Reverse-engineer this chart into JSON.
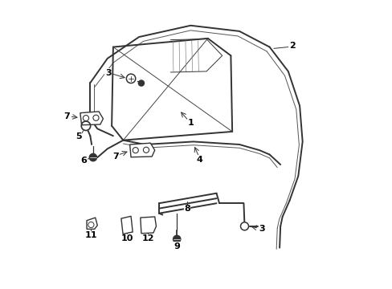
{
  "background_color": "#ffffff",
  "line_color": "#333333",
  "label_color": "#000000",
  "figsize": [
    4.89,
    3.6
  ],
  "dpi": 100,
  "lw_main": 1.4,
  "lw_thin": 0.7,
  "lw_inner": 0.9
}
